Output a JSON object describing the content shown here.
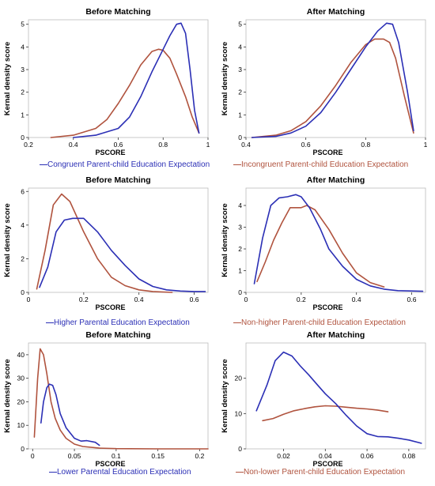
{
  "colors": {
    "blue": "#2b2fb5",
    "red": "#b0533e",
    "axis": "#333333"
  },
  "legend": {
    "row1_left": "Congruent Parent-child Education Expectation",
    "row1_right": "Incongruent Parent-child Education Expectation",
    "row2_left": "Higher Parental Education Expectation",
    "row2_right": "Non-higher Parent-child Education Expectation",
    "row3_left": "Lower Parental Education Expectation",
    "row3_right": "Non-lower Parent-child Education Expectation",
    "dash": "—"
  },
  "chart_data": [
    {
      "type": "line",
      "title": "Before Matching",
      "xlabel": "PSCORE",
      "ylabel": "Kernal density score",
      "xlim": [
        0.2,
        1.0
      ],
      "ylim": [
        0,
        5.2
      ],
      "xticks": [
        0.2,
        0.4,
        0.6,
        0.8,
        1
      ],
      "xtick_labels": [
        "0.2",
        "0.4",
        "0.6",
        "0.8",
        "1"
      ],
      "yticks": [
        0,
        1,
        2,
        3,
        4,
        5
      ],
      "series": [
        {
          "color_key": "red",
          "x": [
            0.3,
            0.4,
            0.5,
            0.55,
            0.6,
            0.65,
            0.7,
            0.75,
            0.78,
            0.8,
            0.83,
            0.86,
            0.9,
            0.93,
            0.96
          ],
          "y": [
            0.0,
            0.1,
            0.4,
            0.8,
            1.5,
            2.3,
            3.2,
            3.8,
            3.9,
            3.85,
            3.5,
            2.8,
            1.8,
            0.9,
            0.2
          ]
        },
        {
          "color_key": "blue",
          "x": [
            0.4,
            0.5,
            0.6,
            0.65,
            0.7,
            0.75,
            0.8,
            0.83,
            0.86,
            0.88,
            0.9,
            0.92,
            0.94,
            0.96
          ],
          "y": [
            0.0,
            0.1,
            0.4,
            0.9,
            1.8,
            2.9,
            3.9,
            4.5,
            5.0,
            5.05,
            4.6,
            3.0,
            1.2,
            0.2
          ]
        }
      ]
    },
    {
      "type": "line",
      "title": "After Matching",
      "xlabel": "PSCORE",
      "ylabel": "Kernal density score",
      "xlim": [
        0.4,
        1.0
      ],
      "ylim": [
        0,
        5.2
      ],
      "xticks": [
        0.4,
        0.6,
        0.8,
        1
      ],
      "xtick_labels": [
        "0.4",
        "0.6",
        "0.8",
        "1"
      ],
      "yticks": [
        0,
        1,
        2,
        3,
        4,
        5
      ],
      "series": [
        {
          "color_key": "red",
          "x": [
            0.42,
            0.5,
            0.55,
            0.6,
            0.65,
            0.7,
            0.75,
            0.8,
            0.83,
            0.86,
            0.88,
            0.9,
            0.93,
            0.96
          ],
          "y": [
            0.0,
            0.1,
            0.3,
            0.7,
            1.4,
            2.3,
            3.3,
            4.1,
            4.35,
            4.35,
            4.2,
            3.5,
            1.8,
            0.2
          ]
        },
        {
          "color_key": "blue",
          "x": [
            0.42,
            0.5,
            0.55,
            0.6,
            0.65,
            0.7,
            0.75,
            0.8,
            0.84,
            0.87,
            0.89,
            0.91,
            0.94,
            0.96
          ],
          "y": [
            0.0,
            0.05,
            0.2,
            0.5,
            1.1,
            2.0,
            3.0,
            4.0,
            4.7,
            5.05,
            5.0,
            4.2,
            2.0,
            0.3
          ]
        }
      ]
    },
    {
      "type": "line",
      "title": "Before Matching",
      "xlabel": "PSCORE",
      "ylabel": "Kernal density score",
      "xlim": [
        0.0,
        0.65
      ],
      "ylim": [
        0,
        6.2
      ],
      "xticks": [
        0,
        0.2,
        0.4,
        0.6
      ],
      "xtick_labels": [
        "0",
        "0.2",
        "0.4",
        "0.6"
      ],
      "yticks": [
        0,
        2,
        4,
        6
      ],
      "series": [
        {
          "color_key": "red",
          "x": [
            0.03,
            0.06,
            0.09,
            0.12,
            0.15,
            0.2,
            0.25,
            0.3,
            0.35,
            0.4,
            0.45,
            0.52
          ],
          "y": [
            0.2,
            2.5,
            5.2,
            5.85,
            5.4,
            3.6,
            2.0,
            0.9,
            0.4,
            0.15,
            0.05,
            0.0
          ]
        },
        {
          "color_key": "blue",
          "x": [
            0.04,
            0.07,
            0.1,
            0.13,
            0.16,
            0.2,
            0.25,
            0.3,
            0.35,
            0.4,
            0.45,
            0.5,
            0.55,
            0.6,
            0.64
          ],
          "y": [
            0.3,
            1.5,
            3.6,
            4.3,
            4.4,
            4.4,
            3.6,
            2.5,
            1.6,
            0.8,
            0.35,
            0.15,
            0.08,
            0.05,
            0.05
          ]
        }
      ]
    },
    {
      "type": "line",
      "title": "After Matching",
      "xlabel": "PSCORE",
      "ylabel": "Kernal density score",
      "xlim": [
        0.0,
        0.65
      ],
      "ylim": [
        0,
        4.8
      ],
      "xticks": [
        0,
        0.2,
        0.4,
        0.6
      ],
      "xtick_labels": [
        "0",
        "0.2",
        "0.4",
        "0.6"
      ],
      "yticks": [
        0,
        1,
        2,
        3,
        4
      ],
      "series": [
        {
          "color_key": "red",
          "x": [
            0.04,
            0.07,
            0.1,
            0.13,
            0.16,
            0.2,
            0.22,
            0.25,
            0.3,
            0.35,
            0.4,
            0.45,
            0.5
          ],
          "y": [
            0.5,
            1.4,
            2.4,
            3.2,
            3.9,
            3.9,
            4.0,
            3.8,
            2.9,
            1.8,
            0.9,
            0.45,
            0.25
          ]
        },
        {
          "color_key": "blue",
          "x": [
            0.03,
            0.06,
            0.09,
            0.12,
            0.15,
            0.18,
            0.2,
            0.23,
            0.27,
            0.3,
            0.35,
            0.4,
            0.45,
            0.5,
            0.55,
            0.64
          ],
          "y": [
            0.4,
            2.5,
            4.0,
            4.35,
            4.4,
            4.5,
            4.4,
            3.9,
            2.9,
            2.0,
            1.2,
            0.6,
            0.3,
            0.15,
            0.08,
            0.05
          ]
        }
      ]
    },
    {
      "type": "line",
      "title": "Before Matching",
      "xlabel": "PSCORE",
      "ylabel": "Kernal density score",
      "xlim": [
        -0.005,
        0.21
      ],
      "ylim": [
        0,
        45
      ],
      "xticks": [
        0,
        0.05,
        0.1,
        0.15,
        0.2
      ],
      "xtick_labels": [
        "0",
        "0.05",
        "0.1",
        "0.15",
        "0.2"
      ],
      "yticks": [
        0,
        10,
        20,
        30,
        40
      ],
      "series": [
        {
          "color_key": "red",
          "x": [
            0.002,
            0.006,
            0.009,
            0.013,
            0.017,
            0.022,
            0.027,
            0.033,
            0.04,
            0.05,
            0.06,
            0.08,
            0.1,
            0.15,
            0.21
          ],
          "y": [
            5,
            30,
            42.5,
            40,
            32,
            20,
            13,
            8,
            4.5,
            2,
            1,
            0.3,
            0.1,
            0.0,
            0.0
          ]
        },
        {
          "color_key": "blue",
          "x": [
            0.01,
            0.013,
            0.017,
            0.02,
            0.024,
            0.028,
            0.033,
            0.04,
            0.05,
            0.058,
            0.065,
            0.075,
            0.08
          ],
          "y": [
            11,
            20,
            26,
            27.5,
            27,
            23,
            15,
            9,
            4.5,
            3.3,
            3.5,
            2.8,
            1.5
          ]
        }
      ]
    },
    {
      "type": "line",
      "title": "After Matching",
      "xlabel": "PSCORE",
      "ylabel": "Kernal density score",
      "xlim": [
        0.002,
        0.088
      ],
      "ylim": [
        0,
        30
      ],
      "xticks": [
        0.02,
        0.04,
        0.06,
        0.08
      ],
      "xtick_labels": [
        "0.02",
        "0.04",
        "0.06",
        "0.08"
      ],
      "yticks": [
        0,
        10,
        20
      ],
      "series": [
        {
          "color_key": "red",
          "x": [
            0.01,
            0.015,
            0.02,
            0.025,
            0.03,
            0.035,
            0.04,
            0.045,
            0.05,
            0.055,
            0.06,
            0.065,
            0.07
          ],
          "y": [
            8,
            8.6,
            9.8,
            10.8,
            11.4,
            11.9,
            12.2,
            12.1,
            11.8,
            11.5,
            11.3,
            11.0,
            10.5
          ]
        },
        {
          "color_key": "blue",
          "x": [
            0.007,
            0.012,
            0.016,
            0.02,
            0.024,
            0.028,
            0.032,
            0.036,
            0.04,
            0.045,
            0.05,
            0.055,
            0.06,
            0.065,
            0.07,
            0.075,
            0.08,
            0.086
          ],
          "y": [
            10.8,
            18,
            25,
            27.4,
            26.3,
            23.5,
            21,
            18.3,
            15.6,
            12.8,
            9.5,
            6.5,
            4.3,
            3.5,
            3.4,
            3.0,
            2.5,
            1.6
          ]
        }
      ]
    }
  ]
}
